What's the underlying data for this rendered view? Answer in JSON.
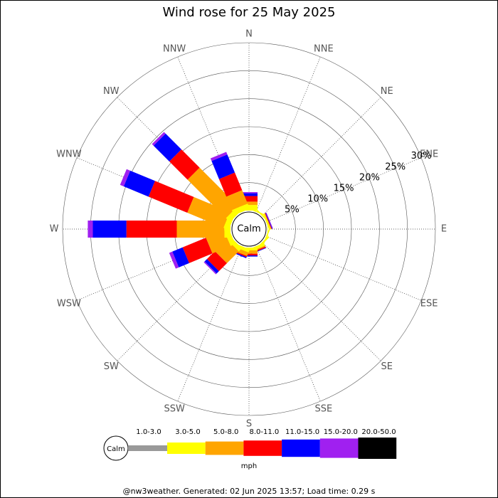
{
  "chart_data": {
    "type": "windrose",
    "title": "Wind rose for 25 May 2025",
    "directions": [
      "N",
      "NNE",
      "NE",
      "ENE",
      "E",
      "ESE",
      "SE",
      "SSE",
      "S",
      "SSW",
      "SW",
      "WSW",
      "W",
      "WNW",
      "NW",
      "NNW"
    ],
    "rlim": [
      0,
      30
    ],
    "rticks": [
      {
        "value": 5,
        "label": "5%"
      },
      {
        "value": 10,
        "label": "10%"
      },
      {
        "value": 15,
        "label": "15%"
      },
      {
        "value": 20,
        "label": "20%"
      },
      {
        "value": 25,
        "label": "25%"
      },
      {
        "value": 30,
        "label": "30%"
      }
    ],
    "calm_label": "Calm",
    "unit": "mph",
    "series": [
      {
        "name": "1.0-3.0",
        "color": "#999999",
        "values": [
          0,
          0,
          0,
          0,
          0,
          0,
          0,
          0,
          0,
          0,
          0,
          0,
          0,
          0,
          0,
          0
        ]
      },
      {
        "name": "3.0-5.0",
        "color": "#ffff00",
        "values": [
          1.0,
          0.2,
          0.2,
          0.3,
          0.1,
          0.2,
          0.3,
          0.5,
          0.5,
          0.6,
          0.8,
          0.9,
          1.1,
          1.0,
          1.0,
          1.0
        ]
      },
      {
        "name": "5.0-8.0",
        "color": "#ffa500",
        "values": [
          0.6,
          0,
          0,
          0.1,
          0,
          0,
          0,
          0.2,
          0.6,
          0.7,
          3.0,
          3.5,
          8.5,
          7.0,
          9.7,
          2.6
        ]
      },
      {
        "name": "8.0-11.0",
        "color": "#ff0000",
        "values": [
          1.0,
          0,
          0,
          0.1,
          0,
          0,
          0,
          0.2,
          0.3,
          0.2,
          2.0,
          4.5,
          9.0,
          7.5,
          4.6,
          3.4
        ]
      },
      {
        "name": "11.0-15.0",
        "color": "#0000ff",
        "values": [
          0.5,
          0,
          0,
          0.1,
          0,
          0,
          0,
          0.1,
          0.2,
          0.2,
          0.6,
          2.0,
          6.0,
          4.8,
          4.0,
          3.5
        ]
      },
      {
        "name": "15.0-20.0",
        "color": "#a020f0",
        "values": [
          0.2,
          0,
          0,
          0.1,
          0,
          0,
          0,
          0,
          0,
          0,
          0.2,
          0.6,
          0.9,
          0.7,
          0.4,
          0.5
        ]
      },
      {
        "name": "20.0-50.0",
        "color": "#000000",
        "values": [
          0,
          0,
          0,
          0,
          0,
          0,
          0,
          0,
          0,
          0,
          0,
          0,
          0,
          0,
          0,
          0
        ]
      }
    ],
    "footer": "@nw3weather. Generated: 02 Jun 2025 13:57; Load time: 0.29 s"
  }
}
